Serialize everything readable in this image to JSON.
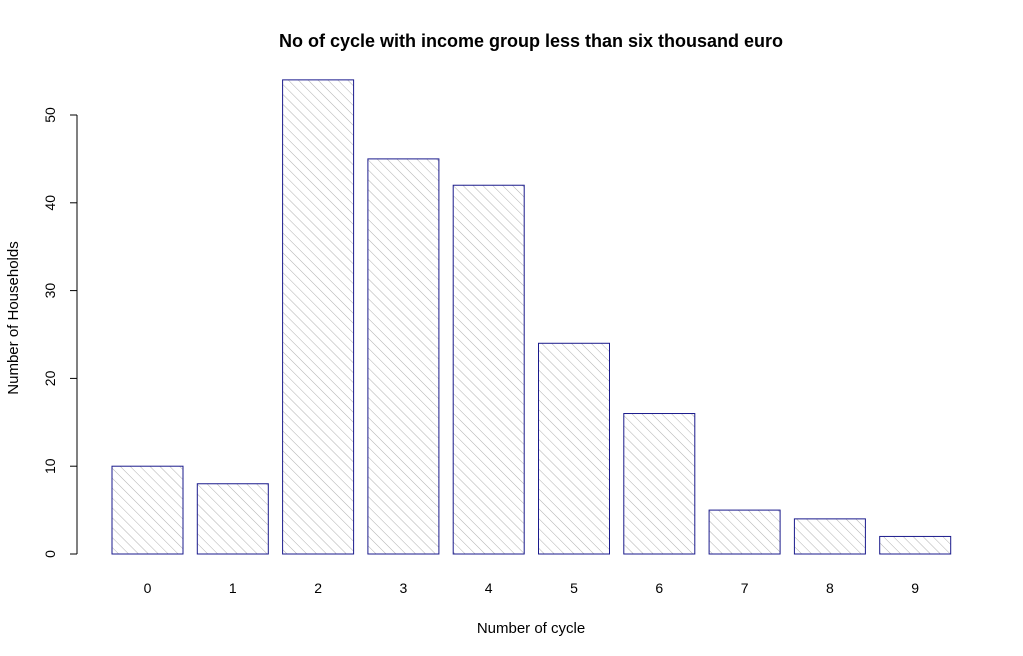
{
  "chart_data": {
    "type": "bar",
    "title": "No of cycle with income group less than six thousand euro",
    "xlabel": "Number of cycle",
    "ylabel": "Number of Households",
    "categories": [
      "0",
      "1",
      "2",
      "3",
      "4",
      "5",
      "6",
      "7",
      "8",
      "9"
    ],
    "values": [
      10,
      8,
      54,
      45,
      42,
      24,
      16,
      5,
      4,
      2
    ],
    "ylim": [
      0,
      54
    ],
    "yticks": [
      "0",
      "10",
      "20",
      "30",
      "40",
      "50"
    ],
    "grid": false,
    "bar_fill": "hatched",
    "colors": {
      "bar_border": "#1a1a8c",
      "hatch": "#b0b0b0",
      "axis": "#000000"
    }
  }
}
